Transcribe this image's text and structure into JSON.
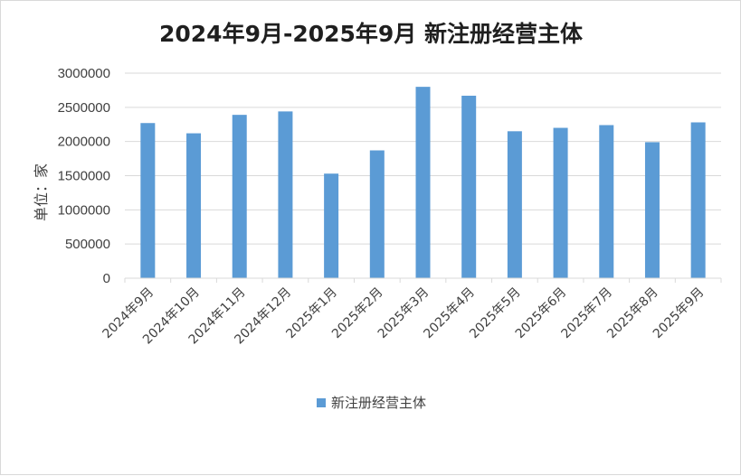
{
  "chart_data": {
    "type": "bar",
    "title": "2024年9月-2025年9月 新注册经营主体",
    "ylabel": "单位：家",
    "xlabel": "",
    "categories": [
      "2024年9月",
      "2024年10月",
      "2024年11月",
      "2024年12月",
      "2025年1月",
      "2025年2月",
      "2025年3月",
      "2025年4月",
      "2025年5月",
      "2025年6月",
      "2025年7月",
      "2025年8月",
      "2025年9月"
    ],
    "series": [
      {
        "name": "新注册经营主体",
        "color": "#5b9bd5",
        "values": [
          2270000,
          2120000,
          2390000,
          2440000,
          1530000,
          1870000,
          2800000,
          2670000,
          2150000,
          2200000,
          2240000,
          1990000,
          2280000
        ]
      }
    ],
    "ylim": [
      0,
      3000000
    ],
    "yticks": [
      "0",
      "500000",
      "1000000",
      "1500000",
      "2000000",
      "2500000",
      "3000000"
    ],
    "grid": true,
    "legend_position": "bottom"
  }
}
